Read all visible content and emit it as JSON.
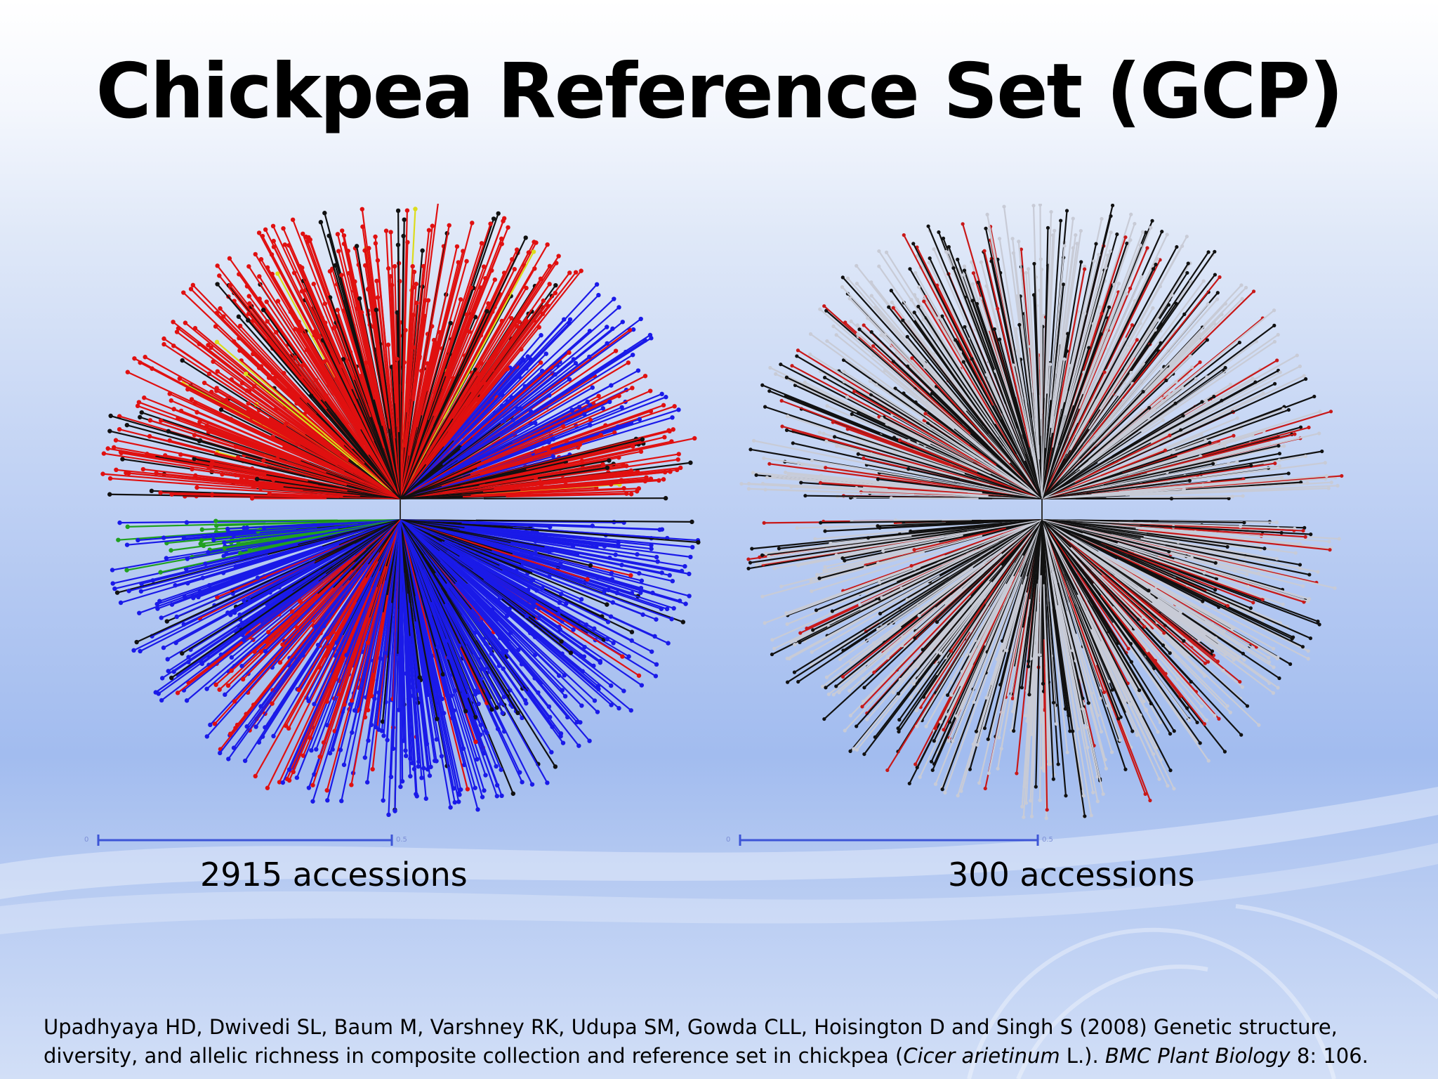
{
  "slide": {
    "title": "Chickpea Reference Set (GCP)",
    "colors": {
      "background_top": "#ffffff",
      "background_mid": "#b3c8f2",
      "scale_bar": "#3d55d6"
    }
  },
  "trees": [
    {
      "id": "composite",
      "caption": "2915 accessions",
      "scale_start": "0",
      "scale_end": "0.5",
      "colors": [
        "#e01010",
        "#1a1ae8",
        "#111111",
        "#dcdc1c",
        "#20a020"
      ]
    },
    {
      "id": "reference",
      "caption": "300 accessions",
      "scale_start": "0",
      "scale_end": "0.5",
      "colors": [
        "#c8cbd6",
        "#111111",
        "#c81818"
      ]
    }
  ],
  "citation": {
    "authors_prefix": "Upadhyaya HD, Dwivedi SL, Baum M, Varshney RK, Udupa SM, Gowda CLL, Hoisington D and Singh S (2008) Genetic structure, diversity, and allelic richness in composite collection and reference set in chickpea (",
    "species": "Cicer arietinum",
    "species_suffix": " L.). ",
    "journal": "BMC Plant Biology",
    "volume_pages": " 8: 106."
  }
}
